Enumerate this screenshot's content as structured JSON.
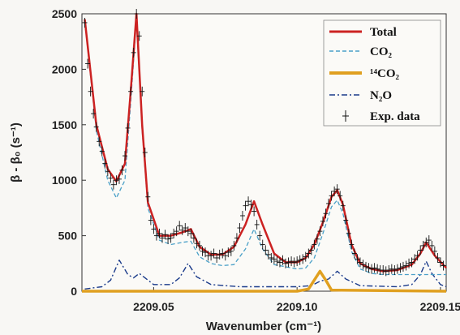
{
  "chart_data": {
    "type": "line",
    "xlabel": "Wavenumber (cm⁻¹)",
    "ylabel": "β - β₀ (s⁻¹)",
    "xlim": [
      2209.025,
      2209.152
    ],
    "ylim": [
      0,
      2500
    ],
    "x_ticks": [
      2209.05,
      2209.1,
      2209.15
    ],
    "x_tick_labels": [
      "2209.05",
      "2209.10",
      "2209.15"
    ],
    "y_ticks": [
      0,
      500,
      1000,
      1500,
      2000,
      2500
    ],
    "y_tick_labels": [
      "0",
      "500",
      "1000",
      "1500",
      "2000",
      "2500"
    ],
    "legend_position": "top-right",
    "series": [
      {
        "name": "Total",
        "color": "#cc2222",
        "style": "solid",
        "x": [
          2209.026,
          2209.03,
          2209.034,
          2209.037,
          2209.04,
          2209.042,
          2209.044,
          2209.046,
          2209.048,
          2209.052,
          2209.056,
          2209.06,
          2209.063,
          2209.066,
          2209.07,
          2209.074,
          2209.078,
          2209.082,
          2209.085,
          2209.088,
          2209.092,
          2209.096,
          2209.1,
          2209.103,
          2209.106,
          2209.109,
          2209.112,
          2209.114,
          2209.116,
          2209.119,
          2209.122,
          2209.126,
          2209.13,
          2209.135,
          2209.14,
          2209.143,
          2209.145,
          2209.148,
          2209.152
        ],
        "y": [
          2450,
          1500,
          1100,
          990,
          1150,
          1800,
          2500,
          1500,
          800,
          500,
          500,
          530,
          560,
          400,
          330,
          330,
          400,
          600,
          810,
          600,
          340,
          260,
          260,
          300,
          420,
          620,
          850,
          910,
          780,
          420,
          250,
          200,
          180,
          190,
          240,
          340,
          440,
          320,
          210
        ]
      },
      {
        "name": "CO₂",
        "color": "#4aa0c8",
        "style": "dashed",
        "x": [
          2209.026,
          2209.03,
          2209.034,
          2209.037,
          2209.04,
          2209.042,
          2209.044,
          2209.046,
          2209.048,
          2209.052,
          2209.056,
          2209.06,
          2209.063,
          2209.066,
          2209.07,
          2209.074,
          2209.078,
          2209.082,
          2209.085,
          2209.088,
          2209.092,
          2209.096,
          2209.1,
          2209.103,
          2209.106,
          2209.109,
          2209.112,
          2209.114,
          2209.116,
          2209.119,
          2209.122,
          2209.126,
          2209.13,
          2209.135,
          2209.14,
          2209.145,
          2209.152
        ],
        "y": [
          2430,
          1450,
          1000,
          840,
          1000,
          1700,
          2450,
          1450,
          750,
          460,
          420,
          440,
          450,
          310,
          250,
          230,
          240,
          380,
          560,
          380,
          240,
          220,
          200,
          210,
          300,
          520,
          760,
          820,
          700,
          360,
          200,
          160,
          150,
          150,
          150,
          150,
          150
        ]
      },
      {
        "name": "¹⁴CO₂",
        "color": "#e0a020",
        "style": "solid-thick",
        "x": [
          2209.025,
          2209.1,
          2209.104,
          2209.106,
          2209.108,
          2209.11,
          2209.112,
          2209.152
        ],
        "y": [
          0,
          0,
          20,
          100,
          180,
          100,
          10,
          0
        ]
      },
      {
        "name": "N₂O",
        "color": "#1a3a8a",
        "style": "dashdot",
        "x": [
          2209.026,
          2209.032,
          2209.035,
          2209.038,
          2209.041,
          2209.043,
          2209.045,
          2209.047,
          2209.05,
          2209.056,
          2209.059,
          2209.062,
          2209.065,
          2209.07,
          2209.08,
          2209.09,
          2209.1,
          2209.105,
          2209.108,
          2209.111,
          2209.114,
          2209.117,
          2209.122,
          2209.135,
          2209.14,
          2209.143,
          2209.145,
          2209.147,
          2209.15,
          2209.152
        ],
        "y": [
          20,
          40,
          100,
          280,
          150,
          120,
          160,
          120,
          60,
          60,
          120,
          250,
          130,
          60,
          40,
          40,
          40,
          50,
          90,
          110,
          180,
          110,
          50,
          40,
          60,
          150,
          270,
          160,
          60,
          40
        ]
      }
    ],
    "exp_data": {
      "name": "Exp. data",
      "x": [
        2209.026,
        2209.027,
        2209.028,
        2209.029,
        2209.03,
        2209.031,
        2209.032,
        2209.033,
        2209.034,
        2209.035,
        2209.036,
        2209.037,
        2209.038,
        2209.039,
        2209.04,
        2209.041,
        2209.042,
        2209.043,
        2209.044,
        2209.045,
        2209.046,
        2209.047,
        2209.048,
        2209.049,
        2209.05,
        2209.051,
        2209.052,
        2209.053,
        2209.054,
        2209.055,
        2209.056,
        2209.057,
        2209.058,
        2209.059,
        2209.06,
        2209.061,
        2209.062,
        2209.063,
        2209.064,
        2209.065,
        2209.066,
        2209.067,
        2209.068,
        2209.069,
        2209.07,
        2209.071,
        2209.072,
        2209.073,
        2209.074,
        2209.075,
        2209.076,
        2209.077,
        2209.078,
        2209.079,
        2209.08,
        2209.081,
        2209.082,
        2209.083,
        2209.084,
        2209.085,
        2209.086,
        2209.087,
        2209.088,
        2209.089,
        2209.09,
        2209.091,
        2209.092,
        2209.093,
        2209.094,
        2209.095,
        2209.096,
        2209.097,
        2209.098,
        2209.099,
        2209.1,
        2209.101,
        2209.102,
        2209.103,
        2209.104,
        2209.105,
        2209.106,
        2209.107,
        2209.108,
        2209.109,
        2209.11,
        2209.111,
        2209.112,
        2209.113,
        2209.114,
        2209.115,
        2209.116,
        2209.117,
        2209.118,
        2209.119,
        2209.12,
        2209.121,
        2209.122,
        2209.123,
        2209.124,
        2209.125,
        2209.126,
        2209.127,
        2209.128,
        2209.129,
        2209.13,
        2209.131,
        2209.132,
        2209.133,
        2209.134,
        2209.135,
        2209.136,
        2209.137,
        2209.138,
        2209.139,
        2209.14,
        2209.141,
        2209.142,
        2209.143,
        2209.144,
        2209.145,
        2209.146,
        2209.147,
        2209.148,
        2209.149,
        2209.15,
        2209.151
      ],
      "y": [
        2420,
        2050,
        1800,
        1600,
        1480,
        1350,
        1260,
        1150,
        1080,
        1020,
        960,
        1000,
        1010,
        1090,
        1220,
        1470,
        1800,
        2150,
        2500,
        2300,
        1800,
        1250,
        850,
        640,
        560,
        500,
        520,
        480,
        510,
        470,
        480,
        520,
        540,
        590,
        550,
        570,
        540,
        520,
        480,
        430,
        410,
        360,
        350,
        320,
        320,
        340,
        300,
        330,
        340,
        320,
        350,
        360,
        410,
        480,
        570,
        680,
        770,
        810,
        780,
        720,
        600,
        500,
        420,
        370,
        330,
        300,
        290,
        270,
        260,
        280,
        250,
        260,
        270,
        260,
        270,
        280,
        290,
        310,
        340,
        370,
        420,
        470,
        540,
        630,
        700,
        790,
        860,
        900,
        920,
        860,
        770,
        640,
        520,
        420,
        340,
        290,
        260,
        240,
        220,
        210,
        200,
        210,
        200,
        190,
        190,
        180,
        190,
        200,
        190,
        200,
        210,
        220,
        230,
        250,
        260,
        290,
        320,
        370,
        410,
        440,
        460,
        410,
        360,
        300,
        260,
        230
      ]
    }
  },
  "legend": {
    "items": [
      {
        "label": "Total"
      },
      {
        "label": "CO₂"
      },
      {
        "label": "¹⁴CO₂"
      },
      {
        "label": "N₂O"
      },
      {
        "label": "Exp. data"
      }
    ]
  }
}
